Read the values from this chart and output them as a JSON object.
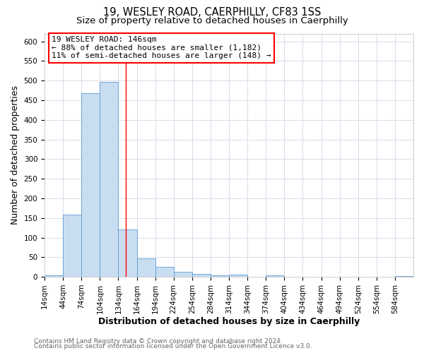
{
  "title": "19, WESLEY ROAD, CAERPHILLY, CF83 1SS",
  "subtitle": "Size of property relative to detached houses in Caerphilly",
  "xlabel": "Distribution of detached houses by size in Caerphilly",
  "ylabel": "Number of detached properties",
  "bin_edges": [
    14,
    44,
    74,
    104,
    134,
    164,
    194,
    224,
    254,
    284,
    314,
    344,
    374,
    404,
    434,
    464,
    494,
    524,
    554,
    584,
    614
  ],
  "bar_heights": [
    3,
    158,
    468,
    496,
    120,
    47,
    25,
    13,
    7,
    3,
    5,
    0,
    3,
    0,
    0,
    0,
    0,
    0,
    0,
    2
  ],
  "bar_color": "#c9ddf0",
  "bar_edge_color": "#5b9bd5",
  "reference_line_x": 146,
  "ylim": [
    0,
    620
  ],
  "yticks": [
    0,
    50,
    100,
    150,
    200,
    250,
    300,
    350,
    400,
    450,
    500,
    550,
    600
  ],
  "annotation_line1": "19 WESLEY ROAD: 146sqm",
  "annotation_line2": "← 88% of detached houses are smaller (1,182)",
  "annotation_line3": "11% of semi-detached houses are larger (148) →",
  "footer_line1": "Contains HM Land Registry data © Crown copyright and database right 2024.",
  "footer_line2": "Contains public sector information licensed under the Open Government Licence v3.0.",
  "bg_color": "#ffffff",
  "plot_bg_color": "#ffffff",
  "grid_color": "#d8dce8",
  "title_fontsize": 10.5,
  "subtitle_fontsize": 9.5,
  "axis_label_fontsize": 9,
  "tick_fontsize": 7.5,
  "footer_fontsize": 6.5
}
